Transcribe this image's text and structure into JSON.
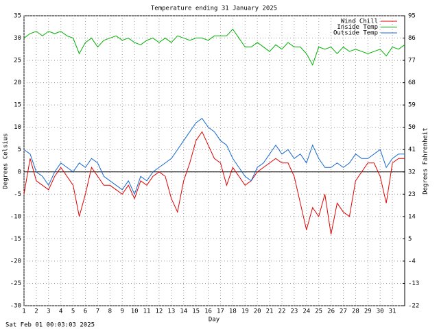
{
  "chart_data": {
    "type": "line",
    "title": "Temperature ending 31 January 2025",
    "x_label": "Day",
    "y_label": "Degrees Celsius",
    "y2_label": "Degrees Fahrenheit",
    "annotation": "Sat Feb 01 00:03:03 2025",
    "x": [
      1,
      1.5,
      2,
      2.5,
      3,
      3.5,
      4,
      4.5,
      5,
      5.5,
      6,
      6.5,
      7,
      7.5,
      8,
      8.5,
      9,
      9.5,
      10,
      10.5,
      11,
      11.5,
      12,
      12.5,
      13,
      13.5,
      14,
      14.5,
      15,
      15.5,
      16,
      16.5,
      17,
      17.5,
      18,
      18.5,
      19,
      19.5,
      20,
      20.5,
      21,
      21.5,
      22,
      22.5,
      23,
      23.5,
      24,
      24.5,
      25,
      25.5,
      26,
      26.5,
      27,
      27.5,
      28,
      28.5,
      29,
      29.5,
      30,
      30.5,
      31,
      31.5,
      32
    ],
    "series": [
      {
        "name": "Wind Chill",
        "color": "#e00000",
        "values": [
          -5,
          3,
          -2,
          -3,
          -4,
          -1,
          1,
          -1,
          -3,
          -10,
          -5,
          1,
          -1,
          -3,
          -3,
          -4,
          -5,
          -3,
          -6,
          -2,
          -3,
          -1,
          0,
          -1,
          -6,
          -9,
          -2,
          2,
          7,
          9,
          6,
          3,
          2,
          -3,
          1,
          -1,
          -3,
          -2,
          0,
          1,
          2,
          3,
          2,
          2,
          -1,
          -7,
          -13,
          -8,
          -10,
          -5,
          -14,
          -7,
          -9,
          -10,
          -2,
          0,
          2,
          2,
          -1,
          -7,
          2,
          3,
          3
        ]
      },
      {
        "name": "Inside Temp",
        "color": "#00b000",
        "values": [
          30,
          31,
          31.5,
          30.5,
          31.5,
          31,
          31.5,
          30.5,
          30,
          26.5,
          29,
          30,
          28,
          29.5,
          30,
          30.5,
          29.5,
          30,
          29,
          28.5,
          29.5,
          30,
          29,
          30,
          29,
          30.5,
          30,
          29.5,
          30,
          30,
          29.5,
          30.5,
          30.5,
          30.5,
          32,
          30,
          28,
          28,
          29,
          28,
          27,
          28.5,
          27.5,
          29,
          28,
          28,
          26.5,
          24,
          28,
          27.5,
          28,
          26.5,
          28,
          27,
          27.5,
          27,
          26.5,
          27,
          27.5,
          26,
          28,
          27.5,
          28.5
        ]
      },
      {
        "name": "Outside Temp",
        "color": "#1466d0",
        "values": [
          5,
          4,
          0,
          -1,
          -3,
          0,
          2,
          1,
          0,
          2,
          1,
          3,
          2,
          -1,
          -2,
          -3,
          -4,
          -2,
          -5,
          -1,
          -2,
          0,
          1,
          2,
          3,
          5,
          7,
          9,
          11,
          12,
          10,
          9,
          7,
          6,
          3,
          1,
          -1,
          -2,
          1,
          2,
          4,
          6,
          4,
          5,
          3,
          4,
          2,
          6,
          3,
          1,
          1,
          2,
          1,
          2,
          4,
          3,
          3,
          4,
          5,
          1,
          3,
          4,
          4
        ]
      }
    ],
    "xlim": [
      1,
      32
    ],
    "xticks": [
      1,
      2,
      3,
      4,
      5,
      6,
      7,
      8,
      9,
      10,
      11,
      12,
      13,
      14,
      15,
      16,
      17,
      18,
      19,
      20,
      21,
      22,
      23,
      24,
      25,
      26,
      27,
      28,
      29,
      30,
      31
    ],
    "ylim": [
      -30,
      35
    ],
    "yticks": [
      -30,
      -25,
      -20,
      -15,
      -10,
      -5,
      0,
      5,
      10,
      15,
      20,
      25,
      30,
      35
    ],
    "y2lim": [
      -22,
      95
    ],
    "y2ticks": [
      -22,
      -13,
      -4,
      5,
      14,
      23,
      32,
      41,
      50,
      59,
      68,
      77,
      86,
      95
    ],
    "grid": true,
    "legend": "top-right"
  }
}
